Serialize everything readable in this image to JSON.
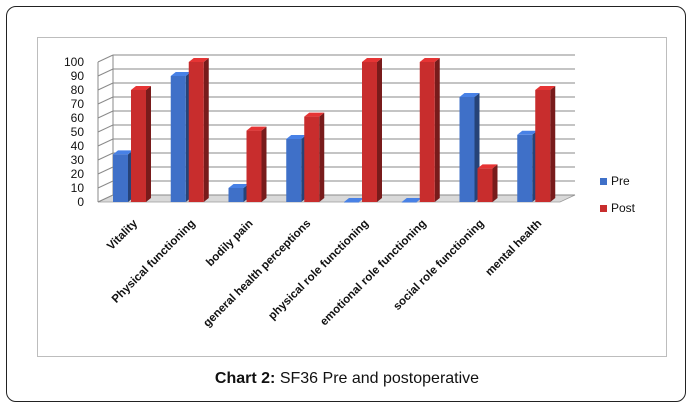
{
  "caption": {
    "bold": "Chart 2:",
    "text": "SF36 Pre and postoperative"
  },
  "chart_data": {
    "type": "bar",
    "style": "3d-clustered-column",
    "categories": [
      "Vitality",
      "Physical functioning",
      "bodily pain",
      "general health perceptions",
      "physical role functioning",
      "emotional role functioning",
      "social role functioning",
      "mental health"
    ],
    "series": [
      {
        "name": "Pre",
        "values": [
          34,
          90,
          10,
          45,
          0,
          0,
          75,
          48
        ],
        "color": "#3f70c8"
      },
      {
        "name": "Post",
        "values": [
          80,
          100,
          51,
          61,
          100,
          100,
          24,
          80
        ],
        "color": "#c82d2d"
      }
    ],
    "ylim": [
      0,
      100
    ],
    "yticks": [
      0,
      10,
      20,
      30,
      40,
      50,
      60,
      70,
      80,
      90,
      100
    ],
    "grid": true,
    "legend": "right"
  }
}
